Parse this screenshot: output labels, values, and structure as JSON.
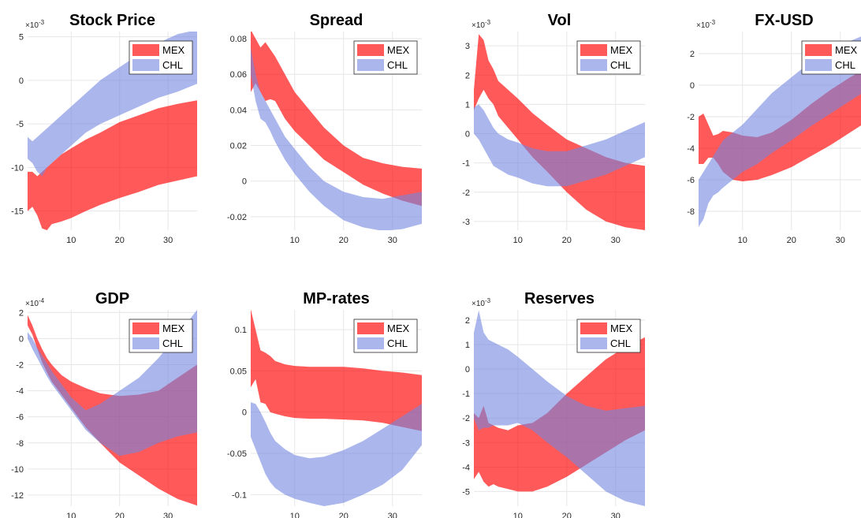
{
  "chart_data": [
    {
      "type": "band",
      "title": "Stock Price",
      "exponent_base": "×10",
      "exponent": "-3",
      "x": [
        1,
        2,
        3,
        4,
        5,
        6,
        8,
        10,
        13,
        16,
        20,
        24,
        28,
        32,
        36
      ],
      "xlim": [
        1,
        36
      ],
      "xticks": [
        10,
        20,
        30
      ],
      "ylim": [
        -17.2,
        5.6
      ],
      "yticks": [
        -15,
        -10,
        -5,
        0,
        5
      ],
      "grid": true,
      "legend": "northeast",
      "series": [
        {
          "name": "MEX",
          "color": "#ff0000",
          "alpha": 0.65,
          "upper": [
            -10.5,
            -10.5,
            -11,
            -10.5,
            -10,
            -9.5,
            -8.5,
            -7.8,
            -6.8,
            -6,
            -4.8,
            -4,
            -3.2,
            -2.7,
            -2.3
          ],
          "lower": [
            -15,
            -14.5,
            -15.5,
            -17,
            -17.2,
            -16.5,
            -16.2,
            -15.8,
            -15,
            -14.3,
            -13.5,
            -12.8,
            -12,
            -11.5,
            -11
          ]
        },
        {
          "name": "CHL",
          "color": "#7185df",
          "alpha": 0.6,
          "upper": [
            -6.5,
            -7,
            -6.5,
            -6,
            -5.5,
            -5,
            -4,
            -3,
            -1.5,
            0,
            1.5,
            3,
            4.3,
            5.3,
            5.8
          ],
          "lower": [
            -9,
            -9.5,
            -10.5,
            -11,
            -10,
            -9.5,
            -8.5,
            -7.5,
            -6,
            -5,
            -4,
            -3,
            -2,
            -1.3,
            -0.4
          ]
        }
      ]
    },
    {
      "type": "band",
      "title": "Spread",
      "x": [
        1,
        2,
        3,
        4,
        5,
        6,
        8,
        10,
        13,
        16,
        20,
        24,
        28,
        32,
        36
      ],
      "xlim": [
        1,
        36
      ],
      "xticks": [
        10,
        20,
        30
      ],
      "ylim": [
        -0.0276,
        0.084
      ],
      "yticks": [
        -0.02,
        0,
        0.02,
        0.04,
        0.06,
        0.08
      ],
      "grid": true,
      "legend": "northeast",
      "series": [
        {
          "name": "MEX",
          "color": "#ff0000",
          "alpha": 0.65,
          "upper": [
            0.085,
            0.08,
            0.075,
            0.078,
            0.074,
            0.07,
            0.06,
            0.05,
            0.04,
            0.03,
            0.02,
            0.013,
            0.01,
            0.008,
            0.007
          ],
          "lower": [
            0.05,
            0.055,
            0.05,
            0.045,
            0.046,
            0.045,
            0.035,
            0.028,
            0.02,
            0.012,
            0.005,
            -0.002,
            -0.007,
            -0.011,
            -0.014
          ]
        },
        {
          "name": "CHL",
          "color": "#7185df",
          "alpha": 0.6,
          "upper": [
            0.075,
            0.06,
            0.05,
            0.045,
            0.04,
            0.035,
            0.025,
            0.018,
            0.008,
            0,
            -0.006,
            -0.009,
            -0.01,
            -0.008,
            -0.006
          ],
          "lower": [
            0.06,
            0.045,
            0.035,
            0.033,
            0.028,
            0.022,
            0.012,
            0.004,
            -0.006,
            -0.014,
            -0.022,
            -0.026,
            -0.028,
            -0.027,
            -0.024
          ]
        }
      ]
    },
    {
      "type": "band",
      "title": "Vol",
      "exponent_base": "×10",
      "exponent": "-3",
      "x": [
        1,
        2,
        3,
        4,
        5,
        6,
        8,
        10,
        13,
        16,
        20,
        24,
        28,
        32,
        36
      ],
      "xlim": [
        1,
        36
      ],
      "xticks": [
        10,
        20,
        30
      ],
      "ylim": [
        -3.3,
        3.49
      ],
      "yticks": [
        -3,
        -2,
        -1,
        0,
        1,
        2,
        3
      ],
      "grid": true,
      "legend": "northeast",
      "series": [
        {
          "name": "MEX",
          "color": "#ff0000",
          "alpha": 0.65,
          "upper": [
            1.5,
            3.4,
            3.2,
            2.5,
            2.2,
            1.8,
            1.5,
            1.2,
            0.7,
            0.3,
            -0.2,
            -0.5,
            -0.8,
            -1,
            -1.1
          ],
          "lower": [
            0.8,
            1.2,
            1.5,
            1.2,
            1,
            0.6,
            0.2,
            -0.2,
            -0.8,
            -1.3,
            -2,
            -2.6,
            -3,
            -3.2,
            -3.3
          ]
        },
        {
          "name": "CHL",
          "color": "#7185df",
          "alpha": 0.6,
          "upper": [
            0.9,
            1,
            0.8,
            0.5,
            0.2,
            0,
            -0.2,
            -0.3,
            -0.5,
            -0.6,
            -0.6,
            -0.4,
            -0.2,
            0.1,
            0.4
          ],
          "lower": [
            0,
            -0.2,
            -0.5,
            -0.8,
            -1.1,
            -1.2,
            -1.4,
            -1.5,
            -1.7,
            -1.8,
            -1.8,
            -1.6,
            -1.4,
            -1.1,
            -0.8
          ]
        }
      ]
    },
    {
      "type": "band",
      "title": "FX-USD",
      "exponent_base": "×10",
      "exponent": "-3",
      "x": [
        1,
        2,
        3,
        4,
        5,
        6,
        8,
        10,
        13,
        16,
        20,
        24,
        28,
        32,
        36
      ],
      "xlim": [
        1,
        36
      ],
      "xticks": [
        10,
        20,
        30
      ],
      "ylim": [
        -9.2,
        3.4
      ],
      "yticks": [
        -8,
        -6,
        -4,
        -2,
        0,
        2
      ],
      "grid": true,
      "legend": "northeast",
      "series": [
        {
          "name": "MEX",
          "color": "#ff0000",
          "alpha": 0.65,
          "upper": [
            -2,
            -1.8,
            -2.5,
            -3.2,
            -3.1,
            -2.9,
            -3,
            -3.2,
            -3.3,
            -3,
            -2.2,
            -1.2,
            -0.3,
            0.5,
            1.2
          ],
          "lower": [
            -5,
            -5,
            -4.6,
            -4.6,
            -5,
            -5.5,
            -6,
            -6.1,
            -6,
            -5.7,
            -5.2,
            -4.5,
            -3.8,
            -3,
            -2.2
          ]
        },
        {
          "name": "CHL",
          "color": "#7185df",
          "alpha": 0.6,
          "upper": [
            -6,
            -5.5,
            -5,
            -4.5,
            -4,
            -3.5,
            -3,
            -2.5,
            -1.5,
            -0.5,
            0.5,
            1.5,
            2.3,
            2.8,
            3.3
          ],
          "lower": [
            -9,
            -8.5,
            -7.5,
            -7,
            -6.8,
            -6.5,
            -6,
            -5.5,
            -5,
            -4.3,
            -3.5,
            -2.6,
            -1.8,
            -1,
            -0.2
          ]
        }
      ]
    },
    {
      "type": "band",
      "title": "GDP",
      "exponent_base": "×10",
      "exponent": "-4",
      "x": [
        1,
        2,
        3,
        4,
        5,
        6,
        8,
        10,
        13,
        16,
        20,
        24,
        28,
        32,
        36
      ],
      "xlim": [
        1,
        36
      ],
      "xticks": [
        10,
        20,
        30
      ],
      "ylim": [
        -12.85,
        2.2
      ],
      "yticks": [
        -12,
        -10,
        -8,
        -6,
        -4,
        -2,
        0,
        2
      ],
      "grid": true,
      "legend": "northeast",
      "series": [
        {
          "name": "MEX",
          "color": "#ff0000",
          "alpha": 0.65,
          "upper": [
            1.8,
            1,
            0,
            -0.8,
            -1.5,
            -2,
            -2.8,
            -3.3,
            -3.8,
            -4.2,
            -4.4,
            -4.3,
            -4,
            -3,
            -2
          ],
          "lower": [
            1,
            0.3,
            -0.8,
            -1.8,
            -2.6,
            -3.3,
            -4.3,
            -5.3,
            -6.8,
            -8,
            -9.5,
            -10.5,
            -11.5,
            -12.3,
            -12.8
          ]
        },
        {
          "name": "CHL",
          "color": "#7185df",
          "alpha": 0.6,
          "upper": [
            0.5,
            0,
            -0.7,
            -1.3,
            -1.9,
            -2.5,
            -3.5,
            -4.5,
            -5.5,
            -5,
            -4,
            -3,
            -1.5,
            0.3,
            2.2
          ],
          "lower": [
            0,
            -0.8,
            -1.5,
            -2.2,
            -2.9,
            -3.5,
            -4.5,
            -5.5,
            -7,
            -8,
            -9,
            -8.7,
            -8,
            -7.5,
            -7.2
          ]
        }
      ]
    },
    {
      "type": "band",
      "title": "MP-rates",
      "x": [
        1,
        2,
        3,
        4,
        5,
        6,
        8,
        10,
        13,
        16,
        20,
        24,
        28,
        32,
        36
      ],
      "xlim": [
        1,
        36
      ],
      "xticks": [
        10,
        20,
        30
      ],
      "ylim": [
        -0.114,
        0.124
      ],
      "yticks": [
        -0.1,
        -0.05,
        0,
        0.05,
        0.1
      ],
      "grid": true,
      "legend": "northeast",
      "series": [
        {
          "name": "MEX",
          "color": "#ff0000",
          "alpha": 0.65,
          "upper": [
            0.125,
            0.1,
            0.075,
            0.072,
            0.068,
            0.062,
            0.058,
            0.056,
            0.055,
            0.055,
            0.055,
            0.053,
            0.05,
            0.048,
            0.045
          ],
          "lower": [
            0.03,
            0.04,
            0.012,
            0.01,
            0,
            -0.002,
            -0.005,
            -0.007,
            -0.008,
            -0.008,
            -0.009,
            -0.01,
            -0.013,
            -0.018,
            -0.023
          ]
        },
        {
          "name": "CHL",
          "color": "#7185df",
          "alpha": 0.6,
          "upper": [
            0.012,
            0.01,
            0,
            -0.012,
            -0.025,
            -0.035,
            -0.045,
            -0.052,
            -0.056,
            -0.054,
            -0.046,
            -0.035,
            -0.02,
            -0.005,
            0.01
          ],
          "lower": [
            -0.03,
            -0.045,
            -0.06,
            -0.075,
            -0.085,
            -0.092,
            -0.1,
            -0.105,
            -0.11,
            -0.114,
            -0.11,
            -0.1,
            -0.088,
            -0.07,
            -0.04
          ]
        }
      ]
    },
    {
      "type": "band",
      "title": "Reserves",
      "exponent_base": "×10",
      "exponent": "-3",
      "x": [
        1,
        2,
        3,
        4,
        5,
        6,
        8,
        10,
        13,
        16,
        20,
        24,
        28,
        32,
        36
      ],
      "xlim": [
        1,
        36
      ],
      "xticks": [
        10,
        20,
        30
      ],
      "ylim": [
        -5.6,
        2.42
      ],
      "yticks": [
        -5,
        -4,
        -3,
        -2,
        -1,
        0,
        1,
        2
      ],
      "grid": true,
      "legend": "northeast",
      "series": [
        {
          "name": "MEX",
          "color": "#ff0000",
          "alpha": 0.65,
          "upper": [
            -1.8,
            -2,
            -1.5,
            -2.2,
            -2.3,
            -2.4,
            -2.5,
            -2.3,
            -2.2,
            -1.8,
            -1,
            -0.3,
            0.4,
            0.9,
            1.3
          ],
          "lower": [
            -4.5,
            -4.2,
            -4.6,
            -4.8,
            -4.7,
            -4.8,
            -4.9,
            -5,
            -5,
            -4.8,
            -4.4,
            -3.9,
            -3.4,
            -2.9,
            -2.5
          ]
        },
        {
          "name": "CHL",
          "color": "#7185df",
          "alpha": 0.6,
          "upper": [
            1.5,
            2.4,
            1.5,
            1.2,
            1.1,
            1,
            0.8,
            0.5,
            0,
            -0.5,
            -1.1,
            -1.5,
            -1.7,
            -1.6,
            -1.5
          ],
          "lower": [
            -2,
            -2.5,
            -2.4,
            -2.4,
            -2.3,
            -2.3,
            -2.3,
            -2.2,
            -2.5,
            -3,
            -3.6,
            -4.3,
            -5,
            -5.4,
            -5.6
          ]
        }
      ]
    }
  ]
}
